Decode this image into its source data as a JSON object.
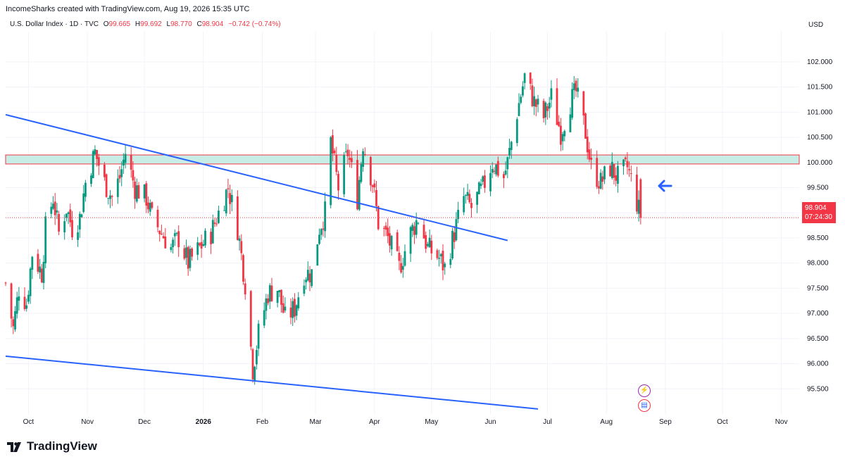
{
  "header": {
    "attribution": "IncomeSharks created with TradingView.com, Aug 19, 2026 15:35 UTC"
  },
  "legend": {
    "symbol": "U.S. Dollar Index · 1D · TVC",
    "o_label": "O",
    "o_value": "99.665",
    "h_label": "H",
    "h_value": "99.692",
    "l_label": "L",
    "l_value": "98.770",
    "c_label": "C",
    "c_value": "98.904",
    "change": "−0.742 (−0.74%)"
  },
  "currency": "USD",
  "last_price": {
    "value": "98.904",
    "countdown": "07:24:30"
  },
  "footer": {
    "brand": "TradingView"
  },
  "icons": {
    "arrow": "left-arrow-icon",
    "event1": "lightning-icon",
    "event2": "us-flag-icon"
  },
  "colors": {
    "up": "#089981",
    "down": "#f23645",
    "trendline": "#2962ff",
    "zone_fill": "#c8ece6",
    "zone_border": "#f23645"
  },
  "chart_data": {
    "type": "candlestick",
    "y_ticks": [
      "102.000",
      "101.500",
      "101.000",
      "100.500",
      "100.000",
      "99.500",
      "99.000",
      "98.500",
      "98.000",
      "97.500",
      "97.000",
      "96.500",
      "96.000",
      "95.500"
    ],
    "x_ticks": [
      "Oct",
      "Nov",
      "Dec",
      "2026",
      "Feb",
      "Mar",
      "Apr",
      "May",
      "Jun",
      "Jul",
      "Aug",
      "Sep",
      "Oct",
      "Nov"
    ],
    "ylim": [
      95.0,
      102.6
    ],
    "zone": {
      "low": 99.97,
      "high": 100.15
    },
    "trendlines": [
      {
        "from": [
          "2025-09-19",
          100.95
        ],
        "to": [
          "2026-06-10",
          98.45
        ]
      },
      {
        "from": [
          "2025-09-19",
          96.15
        ],
        "to": [
          "2026-06-26",
          95.1
        ]
      }
    ],
    "ohlc_anchor_closes": [
      [
        "2025-09-19",
        97.6
      ],
      [
        "2025-09-23",
        96.7
      ],
      [
        "2025-09-26",
        97.5
      ],
      [
        "2025-09-30",
        97.2
      ],
      [
        "2025-10-03",
        98.2
      ],
      [
        "2025-10-08",
        97.8
      ],
      [
        "2025-10-10",
        98.7
      ],
      [
        "2025-10-14",
        99.3
      ],
      [
        "2025-10-17",
        98.6
      ],
      [
        "2025-10-21",
        99.1
      ],
      [
        "2025-10-24",
        98.7
      ],
      [
        "2025-10-28",
        98.9
      ],
      [
        "2025-10-31",
        99.6
      ],
      [
        "2025-11-05",
        100.2
      ],
      [
        "2025-11-10",
        99.6
      ],
      [
        "2025-11-14",
        99.3
      ],
      [
        "2025-11-18",
        99.7
      ],
      [
        "2025-11-21",
        100.2
      ],
      [
        "2025-11-26",
        99.5
      ],
      [
        "2025-12-02",
        99.3
      ],
      [
        "2025-12-05",
        98.9
      ],
      [
        "2025-12-10",
        98.6
      ],
      [
        "2025-12-15",
        98.3
      ],
      [
        "2025-12-19",
        98.5
      ],
      [
        "2025-12-24",
        98.0
      ],
      [
        "2025-12-30",
        98.3
      ],
      [
        "2026-01-05",
        98.6
      ],
      [
        "2026-01-09",
        99.0
      ],
      [
        "2026-01-14",
        99.5
      ],
      [
        "2026-01-19",
        98.7
      ],
      [
        "2026-01-23",
        97.6
      ],
      [
        "2026-01-27",
        95.9
      ],
      [
        "2026-01-30",
        96.6
      ],
      [
        "2026-02-04",
        97.4
      ],
      [
        "2026-02-09",
        97.5
      ],
      [
        "2026-02-13",
        96.9
      ],
      [
        "2026-02-18",
        97.1
      ],
      [
        "2026-02-23",
        97.8
      ],
      [
        "2026-02-27",
        97.8
      ],
      [
        "2026-03-03",
        98.7
      ],
      [
        "2026-03-06",
        99.0
      ],
      [
        "2026-03-09",
        100.4
      ],
      [
        "2026-03-13",
        99.5
      ],
      [
        "2026-03-18",
        100.2
      ],
      [
        "2026-03-23",
        99.3
      ],
      [
        "2026-03-26",
        100.4
      ],
      [
        "2026-03-31",
        99.6
      ],
      [
        "2026-04-03",
        98.8
      ],
      [
        "2026-04-08",
        98.5
      ],
      [
        "2026-04-14",
        97.9
      ],
      [
        "2026-04-20",
        98.6
      ],
      [
        "2026-04-24",
        98.9
      ],
      [
        "2026-04-29",
        98.3
      ],
      [
        "2026-05-05",
        98.1
      ],
      [
        "2026-05-08",
        97.9
      ],
      [
        "2026-05-13",
        98.6
      ],
      [
        "2026-05-18",
        99.3
      ],
      [
        "2026-05-22",
        99.1
      ],
      [
        "2026-05-28",
        99.5
      ],
      [
        "2026-06-02",
        100.0
      ],
      [
        "2026-06-08",
        99.7
      ],
      [
        "2026-06-10",
        100.0
      ],
      [
        "2026-06-15",
        101.0
      ],
      [
        "2026-06-19",
        101.7
      ],
      [
        "2026-06-24",
        101.2
      ],
      [
        "2026-06-29",
        100.9
      ],
      [
        "2026-07-03",
        101.3
      ],
      [
        "2026-07-08",
        100.6
      ],
      [
        "2026-07-13",
        101.2
      ],
      [
        "2026-07-16",
        101.4
      ],
      [
        "2026-07-21",
        100.6
      ],
      [
        "2026-07-24",
        99.9
      ],
      [
        "2026-07-29",
        99.6
      ],
      [
        "2026-08-03",
        99.9
      ],
      [
        "2026-08-07",
        99.7
      ],
      [
        "2026-08-12",
        99.9
      ],
      [
        "2026-08-14",
        99.66
      ],
      [
        "2026-08-19",
        98.904
      ]
    ]
  }
}
